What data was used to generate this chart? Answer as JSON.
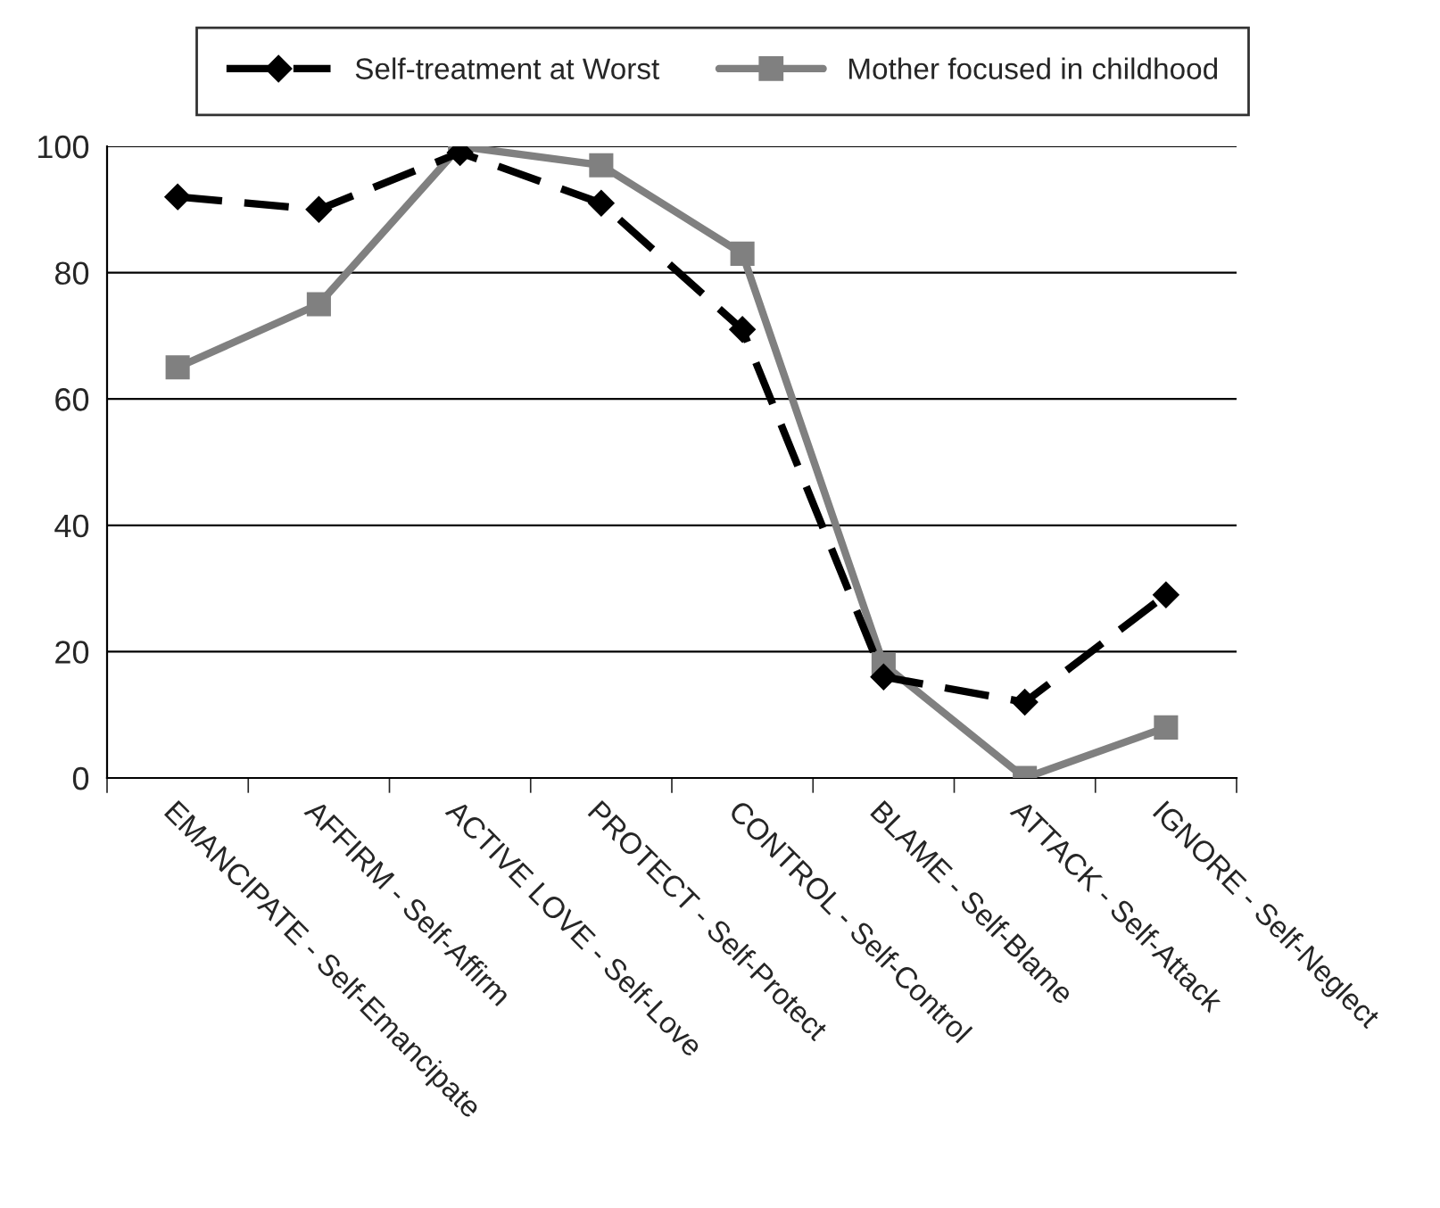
{
  "chart_data": {
    "type": "line",
    "categories": [
      "EMANCIPATE - Self-Emancipate",
      "AFFIRM - Self-Affirm",
      "ACTIVE LOVE - Self-Love",
      "PROTECT - Self-Protect",
      "CONTROL - Self-Control",
      "BLAME - Self-Blame",
      "ATTACK - Self-Attack",
      "IGNORE - Self-Neglect"
    ],
    "series": [
      {
        "name": "Self-treatment at Worst",
        "color": "#000000",
        "marker": "diamond",
        "line_style": "dashed",
        "values": [
          92,
          90,
          99,
          91,
          71,
          16,
          12,
          29
        ]
      },
      {
        "name": "Mother focused in childhood",
        "color": "#808080",
        "marker": "square",
        "line_style": "solid",
        "values": [
          65,
          75,
          100,
          97,
          83,
          18,
          0,
          8
        ]
      }
    ],
    "ylim": [
      0,
      100
    ],
    "yticks": [
      0,
      20,
      40,
      60,
      80,
      100
    ],
    "grid": "y",
    "legend": "top"
  }
}
